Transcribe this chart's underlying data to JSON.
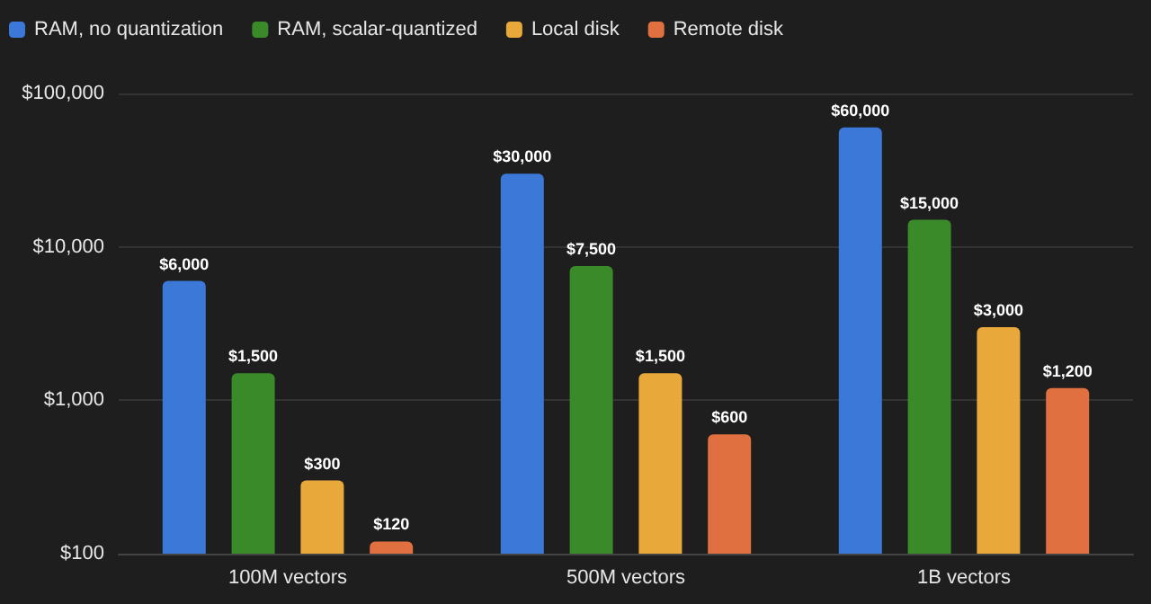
{
  "chart_data": {
    "type": "bar",
    "categories": [
      "100M vectors",
      "500M vectors",
      "1B vectors"
    ],
    "series": [
      {
        "name": "RAM, no quantization",
        "color": "#3b78d8",
        "values": [
          6000,
          30000,
          60000
        ],
        "value_labels": [
          "$6,000",
          "$30,000",
          "$60,000"
        ]
      },
      {
        "name": "RAM, scalar-quantized",
        "color": "#3a8a2a",
        "values": [
          1500,
          7500,
          15000
        ],
        "value_labels": [
          "$1,500",
          "$7,500",
          "$15,000"
        ]
      },
      {
        "name": "Local disk",
        "color": "#e8a93a",
        "values": [
          300,
          1500,
          3000
        ],
        "value_labels": [
          "$300",
          "$1,500",
          "$3,000"
        ]
      },
      {
        "name": "Remote disk",
        "color": "#e0703f",
        "values": [
          120,
          600,
          1200
        ],
        "value_labels": [
          "$120",
          "$600",
          "$1,200"
        ]
      }
    ],
    "log": true,
    "ylim": [
      100,
      100000
    ],
    "yticks": [
      {
        "value": 100,
        "label": "$100"
      },
      {
        "value": 1000,
        "label": "$1,000"
      },
      {
        "value": 10000,
        "label": "$10,000"
      },
      {
        "value": 100000,
        "label": "$100,000"
      }
    ],
    "grid": "y",
    "legend": "top left"
  }
}
